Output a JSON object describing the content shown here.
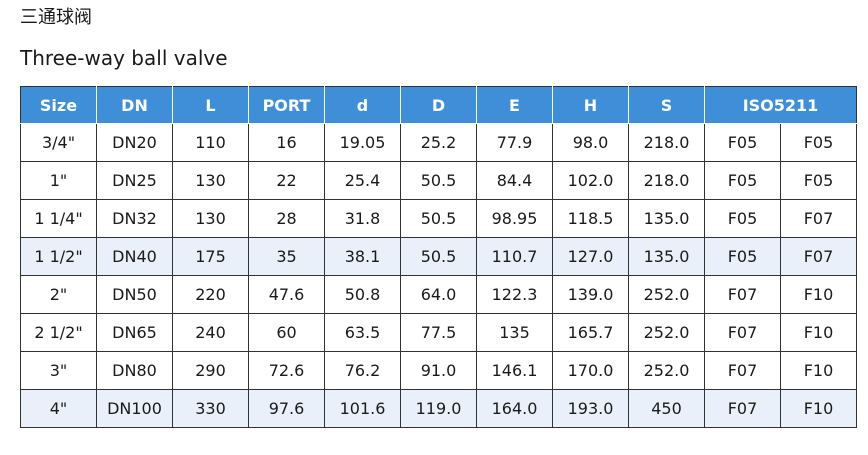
{
  "title_cn": "三通球阀",
  "title_en": "Three-way ball valve",
  "table": {
    "headers": [
      "Size",
      "DN",
      "L",
      "PORT",
      "d",
      "D",
      "E",
      "H",
      "S",
      "ISO5211"
    ],
    "rows": [
      [
        "3/4\"",
        "DN20",
        "110",
        "16",
        "19.05",
        "25.2",
        "77.9",
        "98.0",
        "218.0",
        "F05",
        "F05"
      ],
      [
        "1\"",
        "DN25",
        "130",
        "22",
        "25.4",
        "50.5",
        "84.4",
        "102.0",
        "218.0",
        "F05",
        "F05"
      ],
      [
        "1 1/4\"",
        "DN32",
        "130",
        "28",
        "31.8",
        "50.5",
        "98.95",
        "118.5",
        "135.0",
        "F05",
        "F07"
      ],
      [
        "1 1/2\"",
        "DN40",
        "175",
        "35",
        "38.1",
        "50.5",
        "110.7",
        "127.0",
        "135.0",
        "F05",
        "F07"
      ],
      [
        "2\"",
        "DN50",
        "220",
        "47.6",
        "50.8",
        "64.0",
        "122.3",
        "139.0",
        "252.0",
        "F07",
        "F10"
      ],
      [
        "2 1/2\"",
        "DN65",
        "240",
        "60",
        "63.5",
        "77.5",
        "135",
        "165.7",
        "252.0",
        "F07",
        "F10"
      ],
      [
        "3\"",
        "DN80",
        "290",
        "72.6",
        "76.2",
        "91.0",
        "146.1",
        "170.0",
        "252.0",
        "F07",
        "F10"
      ],
      [
        "4\"",
        "DN100",
        "330",
        "97.6",
        "101.6",
        "119.0",
        "164.0",
        "193.0",
        "450",
        "F07",
        "F10"
      ]
    ],
    "highlighted_rows": [
      3,
      7
    ],
    "header_color": "#3f8fd8",
    "highlight_color": "#e9f0fa"
  }
}
